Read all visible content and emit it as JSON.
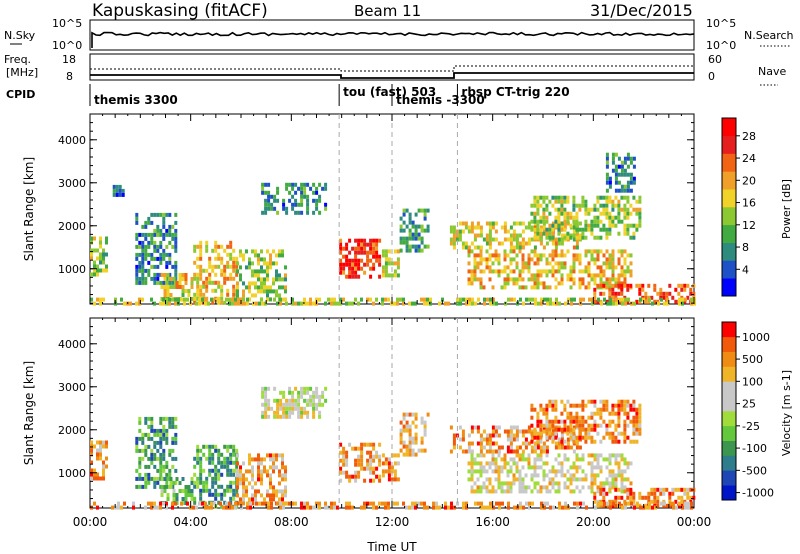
{
  "header": {
    "station": "Kapuskasing (fitACF)",
    "beam": "Beam 11",
    "date": "31/Dec/2015"
  },
  "noise_panel": {
    "left_label": "N.Sky",
    "left_ticks": [
      "10^5",
      "10^0"
    ],
    "right_label": "N.Search",
    "right_ticks": [
      "10^5",
      "10^0"
    ]
  },
  "freq_panel": {
    "left_label_1": "Freq.",
    "left_label_2": "[MHz]",
    "left_ticks": [
      "18",
      "8"
    ],
    "right_label": "Nave",
    "right_ticks": [
      "60",
      "0"
    ]
  },
  "cpid_panel": {
    "label": "CPID",
    "programs": [
      {
        "name": "themis 3300",
        "start_hour": 0
      },
      {
        "name": "tou (fast) 503",
        "start_hour": 9.9
      },
      {
        "name": "themis -3300",
        "start_hour": 12
      },
      {
        "name": "rbsp CT-trig 220",
        "start_hour": 14.6
      }
    ]
  },
  "chart_data": [
    {
      "type": "heatmap",
      "title": "Power",
      "ylabel": "Slant Range [km]",
      "xlabel": "",
      "x_ticks": [
        "00:00",
        "04:00",
        "08:00",
        "12:00",
        "16:00",
        "20:00",
        "00:00"
      ],
      "xlim_hours": [
        0,
        24
      ],
      "ylim_km": [
        180,
        4600
      ],
      "y_ticks": [
        1000,
        2000,
        3000,
        4000
      ],
      "colorbar": {
        "label": "Power [dB]",
        "ticks": [
          "4",
          "8",
          "12",
          "16",
          "20",
          "24",
          "28"
        ],
        "colors": [
          "#0000ff",
          "#1e50c8",
          "#2d8c7d",
          "#41aa41",
          "#8cc832",
          "#f0d228",
          "#f0a028",
          "#f06414",
          "#e61e1e",
          "#ff0000"
        ]
      },
      "regions": [
        {
          "t0": 0.0,
          "t1": 0.6,
          "r0": 850,
          "r1": 1750,
          "level": 0.45
        },
        {
          "t0": 0.9,
          "t1": 1.3,
          "r0": 2700,
          "r1": 2950,
          "level": 0.2
        },
        {
          "t0": 1.8,
          "t1": 3.4,
          "r0": 700,
          "r1": 2300,
          "level": 0.25
        },
        {
          "t0": 2.8,
          "t1": 4.0,
          "r0": 300,
          "r1": 900,
          "level": 0.55
        },
        {
          "t0": 4.1,
          "t1": 5.8,
          "r0": 250,
          "r1": 1650,
          "level": 0.6
        },
        {
          "t0": 5.8,
          "t1": 7.8,
          "r0": 250,
          "r1": 1450,
          "level": 0.45
        },
        {
          "t0": 6.8,
          "t1": 9.4,
          "r0": 2300,
          "r1": 3000,
          "level": 0.25
        },
        {
          "t0": 9.9,
          "t1": 11.5,
          "r0": 800,
          "r1": 1700,
          "level": 0.85
        },
        {
          "t0": 11.6,
          "t1": 12.3,
          "r0": 800,
          "r1": 1450,
          "level": 0.5
        },
        {
          "t0": 12.3,
          "t1": 13.4,
          "r0": 1400,
          "r1": 2400,
          "level": 0.3
        },
        {
          "t0": 14.3,
          "t1": 19.5,
          "r0": 1450,
          "r1": 2100,
          "level": 0.55
        },
        {
          "t0": 15.0,
          "t1": 21.5,
          "r0": 550,
          "r1": 1450,
          "level": 0.6
        },
        {
          "t0": 17.5,
          "t1": 21.8,
          "r0": 1700,
          "r1": 2700,
          "level": 0.45
        },
        {
          "t0": 20.5,
          "t1": 21.6,
          "r0": 2800,
          "r1": 3700,
          "level": 0.25
        },
        {
          "t0": 20.0,
          "t1": 24.0,
          "r0": 200,
          "r1": 650,
          "level": 0.8
        },
        {
          "t0": 0.0,
          "t1": 24.0,
          "r0": 180,
          "r1": 330,
          "level": 0.5
        }
      ]
    },
    {
      "type": "heatmap",
      "title": "Velocity",
      "ylabel": "Slant Range [km]",
      "xlabel": "Time UT",
      "x_ticks": [
        "00:00",
        "04:00",
        "08:00",
        "12:00",
        "16:00",
        "20:00",
        "00:00"
      ],
      "xlim_hours": [
        0,
        24
      ],
      "ylim_km": [
        180,
        4600
      ],
      "y_ticks": [
        1000,
        2000,
        3000,
        4000
      ],
      "colorbar": {
        "label": "Velocity [m s-1]",
        "ticks": [
          "1000",
          "500",
          "100",
          "25",
          "-25",
          "-100",
          "-500",
          "-1000"
        ],
        "colors": [
          "#0014c8",
          "#1e46b4",
          "#2d7d8c",
          "#3c9650",
          "#64c83c",
          "#a0dc3c",
          "#c8c8c8",
          "#c8c8c8",
          "#f0b428",
          "#f08c14",
          "#f05a0a",
          "#ff0000"
        ]
      },
      "regions": [
        {
          "t0": 0.0,
          "t1": 0.6,
          "r0": 850,
          "r1": 1750,
          "level": 0.75
        },
        {
          "t0": 1.8,
          "t1": 3.4,
          "r0": 700,
          "r1": 2300,
          "level": 0.3
        },
        {
          "t0": 2.8,
          "t1": 4.0,
          "r0": 300,
          "r1": 900,
          "level": 0.35
        },
        {
          "t0": 4.1,
          "t1": 5.8,
          "r0": 250,
          "r1": 1650,
          "level": 0.3
        },
        {
          "t0": 5.8,
          "t1": 7.8,
          "r0": 250,
          "r1": 1450,
          "level": 0.75
        },
        {
          "t0": 6.8,
          "t1": 9.4,
          "r0": 2300,
          "r1": 3000,
          "level": 0.55
        },
        {
          "t0": 9.9,
          "t1": 11.5,
          "r0": 800,
          "r1": 1700,
          "level": 0.78
        },
        {
          "t0": 11.6,
          "t1": 12.3,
          "r0": 800,
          "r1": 1450,
          "level": 0.78
        },
        {
          "t0": 12.3,
          "t1": 13.4,
          "r0": 1400,
          "r1": 2400,
          "level": 0.7
        },
        {
          "t0": 14.3,
          "t1": 19.5,
          "r0": 1450,
          "r1": 2100,
          "level": 0.78
        },
        {
          "t0": 15.0,
          "t1": 21.5,
          "r0": 550,
          "r1": 1450,
          "level": 0.6
        },
        {
          "t0": 17.5,
          "t1": 21.8,
          "r0": 1700,
          "r1": 2700,
          "level": 0.8
        },
        {
          "t0": 20.0,
          "t1": 24.0,
          "r0": 200,
          "r1": 650,
          "level": 0.8
        },
        {
          "t0": 0.0,
          "t1": 24.0,
          "r0": 180,
          "r1": 330,
          "level": 0.78
        }
      ]
    }
  ]
}
